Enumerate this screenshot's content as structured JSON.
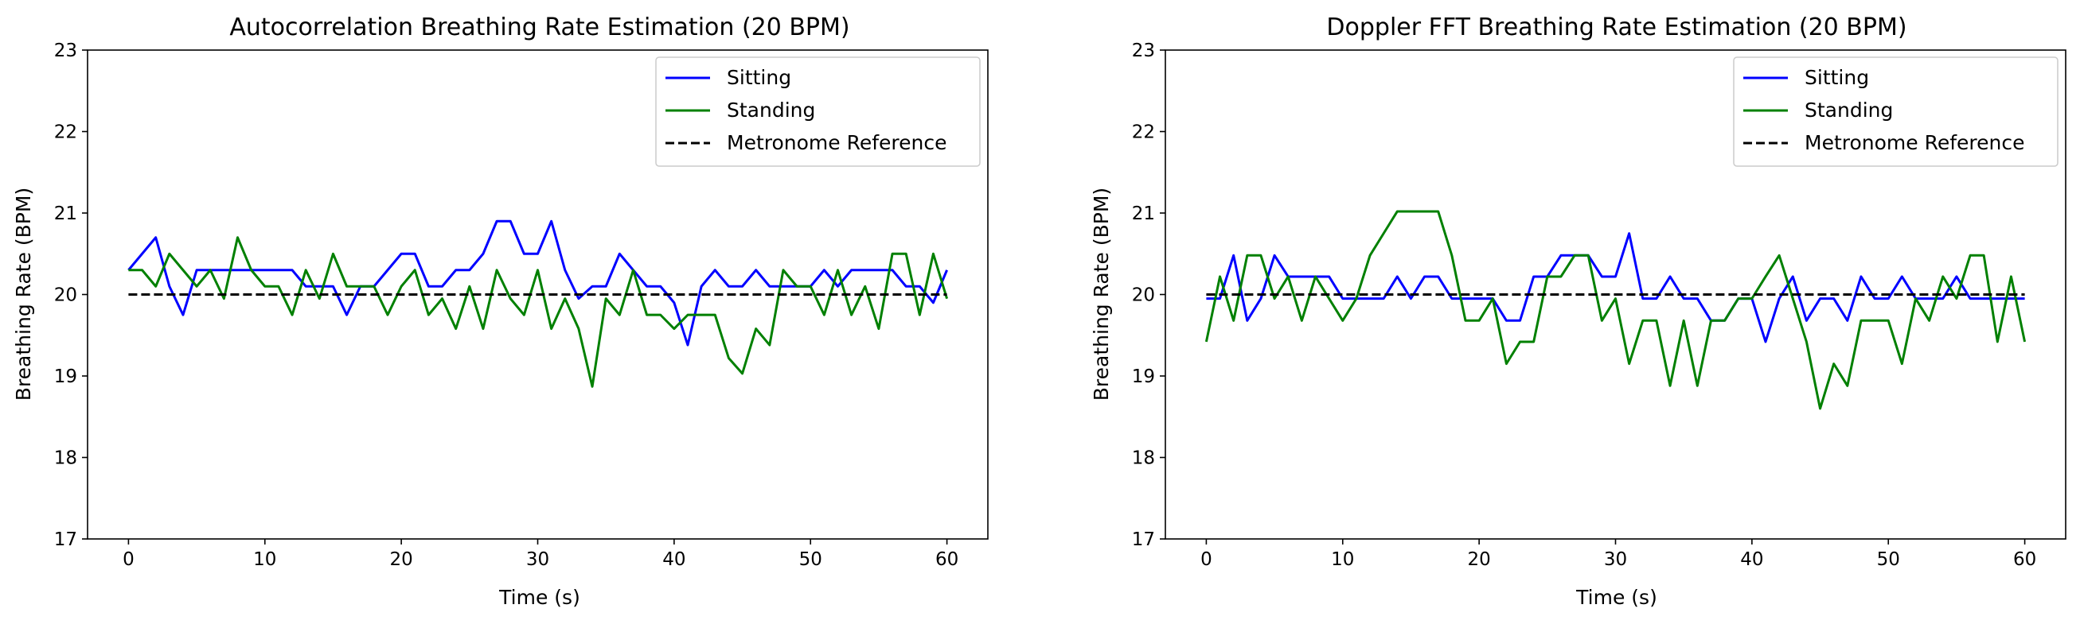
{
  "chart_data": [
    {
      "type": "line",
      "title": "Autocorrelation Breathing Rate Estimation (20 BPM)",
      "xlabel": "Time (s)",
      "ylabel": "Breathing Rate (BPM)",
      "xlim": [
        -3,
        63
      ],
      "ylim": [
        17,
        23
      ],
      "xticks": [
        0,
        10,
        20,
        30,
        40,
        50,
        60
      ],
      "yticks": [
        17,
        18,
        19,
        20,
        21,
        22,
        23
      ],
      "grid": false,
      "legend_position": "top-right",
      "x": [
        0,
        1,
        2,
        3,
        4,
        5,
        6,
        7,
        8,
        9,
        10,
        11,
        12,
        13,
        14,
        15,
        16,
        17,
        18,
        19,
        20,
        21,
        22,
        23,
        24,
        25,
        26,
        27,
        28,
        29,
        30,
        31,
        32,
        33,
        34,
        35,
        36,
        37,
        38,
        39,
        40,
        41,
        42,
        43,
        44,
        45,
        46,
        47,
        48,
        49,
        50,
        51,
        52,
        53,
        54,
        55,
        56,
        57,
        58,
        59,
        60
      ],
      "series": [
        {
          "name": "Sitting",
          "color": "#0000ff",
          "style": "solid",
          "values": [
            20.3,
            20.5,
            20.7,
            20.1,
            19.75,
            20.3,
            20.3,
            20.3,
            20.3,
            20.3,
            20.3,
            20.3,
            20.3,
            20.1,
            20.1,
            20.1,
            19.75,
            20.1,
            20.1,
            20.3,
            20.5,
            20.5,
            20.1,
            20.1,
            20.3,
            20.3,
            20.5,
            20.9,
            20.9,
            20.5,
            20.5,
            20.9,
            20.3,
            19.95,
            20.1,
            20.1,
            20.5,
            20.3,
            20.1,
            20.1,
            19.9,
            19.38,
            20.1,
            20.3,
            20.1,
            20.1,
            20.3,
            20.1,
            20.1,
            20.1,
            20.1,
            20.3,
            20.1,
            20.3,
            20.3,
            20.3,
            20.3,
            20.1,
            20.1,
            19.9,
            20.3
          ]
        },
        {
          "name": "Standing",
          "color": "#008000",
          "style": "solid",
          "values": [
            20.3,
            20.3,
            20.1,
            20.5,
            20.3,
            20.1,
            20.3,
            19.95,
            20.7,
            20.3,
            20.1,
            20.1,
            19.75,
            20.3,
            19.95,
            20.5,
            20.1,
            20.1,
            20.1,
            19.75,
            20.1,
            20.3,
            19.75,
            19.95,
            19.58,
            20.1,
            19.58,
            20.3,
            19.95,
            19.75,
            20.3,
            19.58,
            19.95,
            19.58,
            18.87,
            19.95,
            19.75,
            20.3,
            19.75,
            19.75,
            19.58,
            19.75,
            19.75,
            19.75,
            19.22,
            19.03,
            19.58,
            19.38,
            20.3,
            20.1,
            20.1,
            19.75,
            20.3,
            19.75,
            20.1,
            19.58,
            20.5,
            20.5,
            19.75,
            20.5,
            19.95
          ]
        },
        {
          "name": "Metronome Reference",
          "color": "#000000",
          "style": "dashed",
          "values": [
            20,
            20,
            20,
            20,
            20,
            20,
            20,
            20,
            20,
            20,
            20,
            20,
            20,
            20,
            20,
            20,
            20,
            20,
            20,
            20,
            20,
            20,
            20,
            20,
            20,
            20,
            20,
            20,
            20,
            20,
            20,
            20,
            20,
            20,
            20,
            20,
            20,
            20,
            20,
            20,
            20,
            20,
            20,
            20,
            20,
            20,
            20,
            20,
            20,
            20,
            20,
            20,
            20,
            20,
            20,
            20,
            20,
            20,
            20,
            20,
            20
          ]
        }
      ]
    },
    {
      "type": "line",
      "title": "Doppler FFT Breathing Rate Estimation (20 BPM)",
      "xlabel": "Time (s)",
      "ylabel": "Breathing Rate (BPM)",
      "xlim": [
        -3,
        63
      ],
      "ylim": [
        17,
        23
      ],
      "xticks": [
        0,
        10,
        20,
        30,
        40,
        50,
        60
      ],
      "yticks": [
        17,
        18,
        19,
        20,
        21,
        22,
        23
      ],
      "grid": false,
      "legend_position": "top-right",
      "x": [
        0,
        1,
        2,
        3,
        4,
        5,
        6,
        7,
        8,
        9,
        10,
        11,
        12,
        13,
        14,
        15,
        16,
        17,
        18,
        19,
        20,
        21,
        22,
        23,
        24,
        25,
        26,
        27,
        28,
        29,
        30,
        31,
        32,
        33,
        34,
        35,
        36,
        37,
        38,
        39,
        40,
        41,
        42,
        43,
        44,
        45,
        46,
        47,
        48,
        49,
        50,
        51,
        52,
        53,
        54,
        55,
        56,
        57,
        58,
        59,
        60
      ],
      "series": [
        {
          "name": "Sitting",
          "color": "#0000ff",
          "style": "solid",
          "values": [
            19.95,
            19.95,
            20.48,
            19.68,
            19.95,
            20.48,
            20.22,
            20.22,
            20.22,
            20.22,
            19.95,
            19.95,
            19.95,
            19.95,
            20.22,
            19.95,
            20.22,
            20.22,
            19.95,
            19.95,
            19.95,
            19.95,
            19.68,
            19.68,
            20.22,
            20.22,
            20.48,
            20.48,
            20.48,
            20.22,
            20.22,
            20.75,
            19.95,
            19.95,
            20.22,
            19.95,
            19.95,
            19.68,
            19.68,
            19.95,
            19.95,
            19.42,
            19.95,
            20.22,
            19.68,
            19.95,
            19.95,
            19.68,
            20.22,
            19.95,
            19.95,
            20.22,
            19.95,
            19.95,
            19.95,
            20.22,
            19.95,
            19.95,
            19.95,
            19.95,
            19.95
          ]
        },
        {
          "name": "Standing",
          "color": "#008000",
          "style": "solid",
          "values": [
            19.42,
            20.22,
            19.68,
            20.48,
            20.48,
            19.95,
            20.22,
            19.68,
            20.22,
            19.95,
            19.68,
            19.95,
            20.48,
            20.75,
            21.02,
            21.02,
            21.02,
            21.02,
            20.48,
            19.68,
            19.68,
            19.95,
            19.15,
            19.42,
            19.42,
            20.22,
            20.22,
            20.48,
            20.48,
            19.68,
            19.95,
            19.15,
            19.68,
            19.68,
            18.88,
            19.68,
            18.88,
            19.68,
            19.68,
            19.95,
            19.95,
            20.22,
            20.48,
            19.95,
            19.42,
            18.6,
            19.15,
            18.88,
            19.68,
            19.68,
            19.68,
            19.15,
            19.95,
            19.68,
            20.22,
            19.95,
            20.48,
            20.48,
            19.42,
            20.22,
            19.42
          ]
        },
        {
          "name": "Metronome Reference",
          "color": "#000000",
          "style": "dashed",
          "values": [
            20,
            20,
            20,
            20,
            20,
            20,
            20,
            20,
            20,
            20,
            20,
            20,
            20,
            20,
            20,
            20,
            20,
            20,
            20,
            20,
            20,
            20,
            20,
            20,
            20,
            20,
            20,
            20,
            20,
            20,
            20,
            20,
            20,
            20,
            20,
            20,
            20,
            20,
            20,
            20,
            20,
            20,
            20,
            20,
            20,
            20,
            20,
            20,
            20,
            20,
            20,
            20,
            20,
            20,
            20,
            20,
            20,
            20,
            20,
            20,
            20
          ]
        }
      ]
    }
  ]
}
